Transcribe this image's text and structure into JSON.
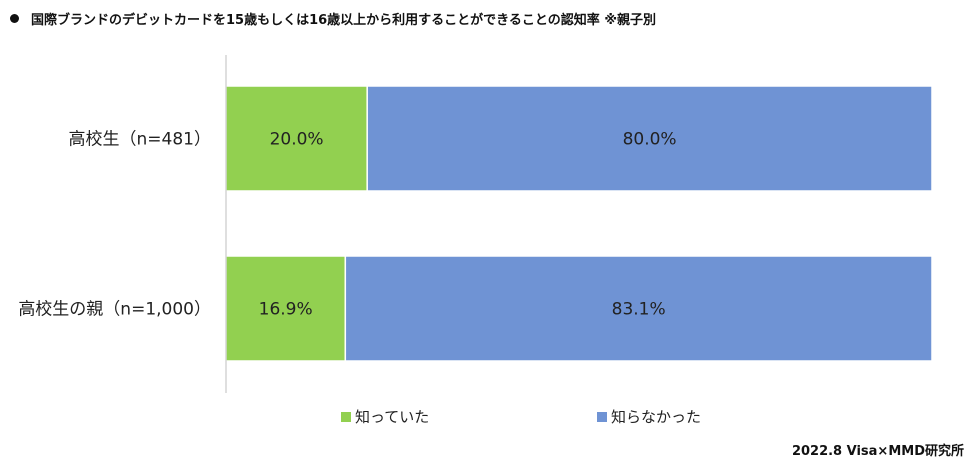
{
  "header": {
    "title": "国際ブランドのデビットカードを15歳もしくは16歳以上から利用することができることの認知率 ※親子別"
  },
  "footer": {
    "source": "2022.8 Visa×MMD研究所"
  },
  "chart_data": {
    "type": "bar",
    "orientation": "horizontal",
    "stacked": true,
    "percent_stacked": true,
    "categories": [
      "高校生（n=481）",
      "高校生の親（n=1,000）"
    ],
    "series": [
      {
        "name": "知っていた",
        "values": [
          20.0,
          16.9
        ],
        "labels": [
          "20.0%",
          "16.9%"
        ],
        "color": "#92d050"
      },
      {
        "name": "知らなかった",
        "values": [
          80.0,
          83.1
        ],
        "labels": [
          "80.0%",
          "83.1%"
        ],
        "color": "#6f93d4"
      }
    ],
    "xlim": [
      0,
      100
    ],
    "grid": false,
    "legend_position": "bottom"
  }
}
